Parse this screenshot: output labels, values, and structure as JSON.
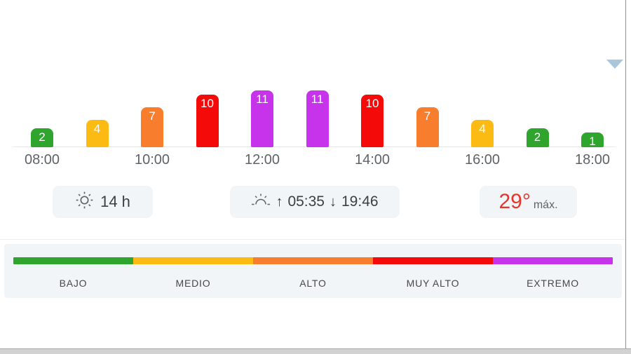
{
  "chart_data": {
    "type": "bar",
    "title": "",
    "values": [
      2,
      4,
      7,
      10,
      11,
      11,
      10,
      7,
      4,
      2,
      1
    ],
    "levels": [
      "bajo",
      "medio",
      "alto",
      "muy_alto",
      "extremo",
      "extremo",
      "muy_alto",
      "alto",
      "medio",
      "bajo",
      "bajo"
    ],
    "x_tick_labels": [
      "08:00",
      "10:00",
      "12:00",
      "14:00",
      "16:00",
      "18:00"
    ],
    "x_tick_indices": [
      0,
      2,
      4,
      6,
      8,
      10
    ],
    "ylim": [
      0,
      11
    ],
    "level_colors": {
      "bajo": "#2fa52e",
      "medio": "#fcbb13",
      "alto": "#f87d2c",
      "muy_alto": "#f50a0a",
      "extremo": "#c633eb"
    },
    "value_label_color": "#ffffff"
  },
  "legend": {
    "items": [
      {
        "label": "BAJO",
        "color": "#2fa52e"
      },
      {
        "label": "MEDIO",
        "color": "#fcbb13"
      },
      {
        "label": "ALTO",
        "color": "#f87d2c"
      },
      {
        "label": "MUY ALTO",
        "color": "#f50a0a"
      },
      {
        "label": "EXTREMO",
        "color": "#c633eb"
      }
    ]
  },
  "cards": {
    "daylight": {
      "text": "14 h"
    },
    "sun_times": {
      "sunrise_arrow": "↑",
      "sunrise_time": "05:35",
      "sunset_arrow": "↓",
      "sunset_time": "19:46"
    },
    "max_temp": {
      "value": "29°",
      "label": "máx.",
      "color": "#e73528"
    }
  },
  "colors": {
    "collapse_arrow": "#a9c6da",
    "card_background": "#f1f5f8",
    "legend_background": "#f2f5f8",
    "tick_text": "#5f6368"
  }
}
